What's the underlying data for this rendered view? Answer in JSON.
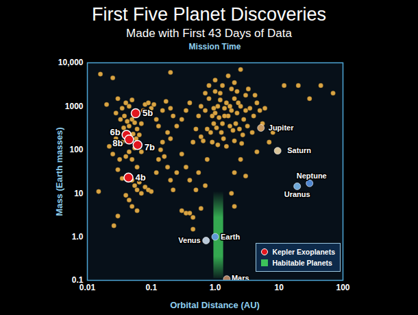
{
  "chart_data": {
    "type": "scatter",
    "title": "First Five Planet Discoveries",
    "subtitle": "Made with First 43 Days of Data",
    "annotation": "Mission Time",
    "x_label": "Orbital Distance (AU)",
    "y_label": "Mass (Earth masses)",
    "log": true,
    "grid": false,
    "legend": "bottom-right",
    "xlim": [
      0.01,
      100
    ],
    "xticks": [
      0.01,
      0.1,
      {
        "value": 1,
        "label": "1.0"
      },
      10,
      100
    ],
    "ylim": [
      0.1,
      10000
    ],
    "yticks": [
      0.1,
      {
        "value": 1,
        "label": "1.0"
      },
      10,
      100,
      1000,
      {
        "value": 10000,
        "label": "10,000"
      }
    ],
    "series": [
      {
        "color": "#d9a443",
        "x": [
          0.016,
          0.025,
          0.02,
          0.03,
          0.035,
          0.04,
          0.045,
          0.05,
          0.028,
          0.033,
          0.038,
          0.042,
          0.045,
          0.05,
          0.055,
          0.06,
          0.037,
          0.03,
          0.028,
          0.035,
          0.04,
          0.052,
          0.058,
          0.065,
          0.07,
          0.075,
          0.08,
          0.09,
          0.1,
          0.11,
          0.065,
          0.07,
          0.055,
          0.045,
          0.04,
          0.032,
          0.025,
          0.022,
          0.05,
          0.06,
          0.03,
          0.035,
          0.05,
          0.055,
          0.06,
          0.07,
          0.065,
          0.08,
          0.09,
          0.1,
          0.04,
          0.045,
          0.05,
          0.06,
          0.026,
          0.015,
          0.03,
          0.12,
          0.13,
          0.14,
          0.15,
          0.17,
          0.2,
          0.22,
          0.18,
          0.2,
          0.25,
          0.3,
          0.35,
          0.4,
          0.12,
          0.13,
          0.15,
          0.16,
          0.18,
          0.2,
          0.22,
          0.25,
          0.3,
          0.35,
          0.3,
          0.35,
          0.45,
          0.6,
          0.4,
          0.5,
          0.45,
          0.5,
          0.55,
          0.6,
          0.7,
          0.8,
          0.9,
          1.0,
          1.1,
          1.2,
          1.3,
          1.4,
          1.5,
          1.6,
          1.8,
          2.0,
          2.2,
          2.5,
          2.8,
          3.0,
          3.5,
          4.0,
          4.5,
          5.0,
          0.75,
          0.85,
          0.95,
          1.05,
          1.15,
          1.25,
          1.35,
          1.7,
          1.9,
          2.1,
          2.4,
          2.7,
          3.2,
          3.8,
          0.9,
          1.1,
          1.5,
          2.0,
          2.6,
          0.65,
          0.8,
          1.0,
          1.3,
          1.6,
          2.0,
          2.5,
          1.8,
          1.2,
          2.3,
          3.3,
          0.7,
          0.95,
          1.4,
          1.7,
          2.2,
          0.6,
          3.0,
          4.2,
          5.5,
          1.0,
          6,
          7,
          8,
          12,
          20,
          30,
          45,
          70,
          4.5,
          2.5,
          2.0,
          1.8,
          2.0,
          0.7,
          3.0,
          0.75,
          0.55,
          0.4,
          0.45,
          0.2
        ],
        "values": [
          5500,
          4500,
          1100,
          1500,
          900,
          1200,
          1000,
          1400,
          700,
          500,
          600,
          450,
          350,
          500,
          420,
          300,
          320,
          260,
          180,
          150,
          250,
          230,
          180,
          220,
          400,
          800,
          1100,
          1200,
          900,
          1100,
          120,
          90,
          110,
          90,
          70,
          60,
          80,
          120,
          60,
          40,
          35,
          22,
          20,
          15,
          12,
          10,
          18,
          14,
          12,
          11,
          9,
          7,
          5,
          4,
          1.8,
          11,
          3,
          30,
          60,
          100,
          800,
          1300,
          900,
          600,
          250,
          180,
          350,
          500,
          800,
          1200,
          500,
          350,
          150,
          70,
          40,
          20,
          12,
          30,
          80,
          40,
          4,
          3.5,
          2.8,
          4.5,
          20,
          12,
          150,
          300,
          600,
          1000,
          800,
          1500,
          600,
          700,
          1000,
          2000,
          400,
          900,
          1200,
          600,
          800,
          1500,
          700,
          1000,
          500,
          1800,
          900,
          600,
          1200,
          800,
          300,
          250,
          400,
          320,
          550,
          250,
          180,
          350,
          280,
          400,
          300,
          220,
          350,
          250,
          150,
          130,
          120,
          160,
          140,
          160,
          3000,
          4000,
          3000,
          5000,
          3500,
          7000,
          2500,
          1400,
          1200,
          2500,
          2000,
          900,
          600,
          1000,
          2200,
          200,
          800,
          1800,
          400,
          2200,
          900,
          150,
          250,
          3000,
          3000,
          1500,
          3000,
          2000,
          90,
          60,
          5,
          10,
          30,
          15,
          25,
          60,
          30,
          3.5,
          1.5,
          6000
        ]
      },
      {
        "name": "Kepler Exoplanets",
        "color": "#e0161e",
        "x": [
          0.057,
          0.041,
          0.045,
          0.061,
          0.044
        ],
        "values": [
          690,
          221,
          172,
          129,
          23
        ],
        "point_labels": [
          "5b",
          "6b",
          "8b",
          "7b",
          "4b"
        ]
      },
      {
        "colors": [
          "#b8c8d8",
          "#5d9ad6",
          "#b08060",
          "#c99a62",
          "#d8c49a",
          "#6fa8d8",
          "#4f86d0"
        ],
        "x": [
          0.72,
          1.0,
          1.52,
          5.2,
          9.5,
          19.2,
          30
        ],
        "values": [
          0.82,
          1.0,
          0.107,
          318,
          95,
          14.5,
          17
        ],
        "point_labels": [
          "Venus",
          "Earth",
          "Mars",
          "Jupiter",
          "Saturn",
          "Uranus",
          "Neptune"
        ]
      }
    ],
    "habitable_zone": {
      "name": "Habitable Planets",
      "color": "#3cc35a",
      "x": [
        0.95,
        1.35
      ],
      "values": [
        0.11,
        11
      ]
    }
  }
}
